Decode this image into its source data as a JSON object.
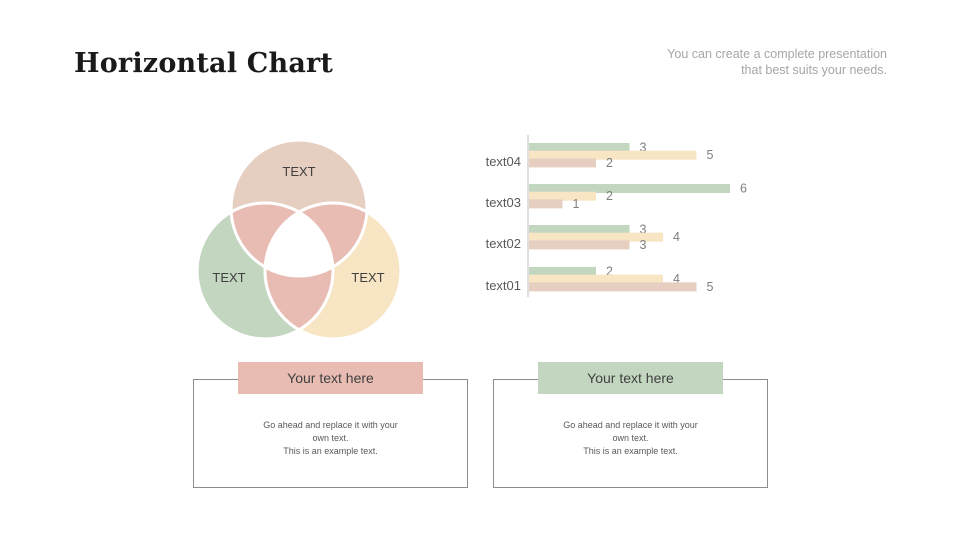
{
  "header": {
    "title": "Horizontal Chart",
    "subtitle_lines": [
      "You can create a complete presentation",
      "that best suits your needs."
    ]
  },
  "colors": {
    "rose": "#e8bcb3",
    "beige": "#e6cfc0",
    "green": "#c3d7c0",
    "cream": "#f7e5c3",
    "axis": "#bfbfbf",
    "label": "#595959"
  },
  "venn": {
    "circles": [
      {
        "label": "TEXT",
        "color": "#e6cfc0"
      },
      {
        "label": "TEXT",
        "color": "#c3d7c0"
      },
      {
        "label": "TEXT",
        "color": "#f7e5c3"
      }
    ],
    "overlap_color": "#e8bcb3"
  },
  "chart_data": {
    "type": "bar",
    "orientation": "horizontal",
    "categories": [
      "text01",
      "text02",
      "text03",
      "text04"
    ],
    "series": [
      {
        "values": [
          2,
          3,
          6,
          3
        ],
        "color": "#c3d7c0"
      },
      {
        "values": [
          4,
          4,
          2,
          5
        ],
        "color": "#f7e5c3"
      },
      {
        "values": [
          5,
          3,
          1,
          2
        ],
        "color": "#e6cfc0"
      }
    ],
    "xlim": [
      0,
      6
    ],
    "grid": false,
    "data_labels": true,
    "legend": "none"
  },
  "cards": [
    {
      "header": "Your text here",
      "header_color": "#e8bcb3",
      "body_lines": [
        "Go ahead and replace it with your",
        "own text.",
        "This is an example text."
      ]
    },
    {
      "header": "Your text here",
      "header_color": "#c3d7c0",
      "body_lines": [
        "Go ahead and replace it with your",
        "own text.",
        "This is an example text."
      ]
    }
  ]
}
